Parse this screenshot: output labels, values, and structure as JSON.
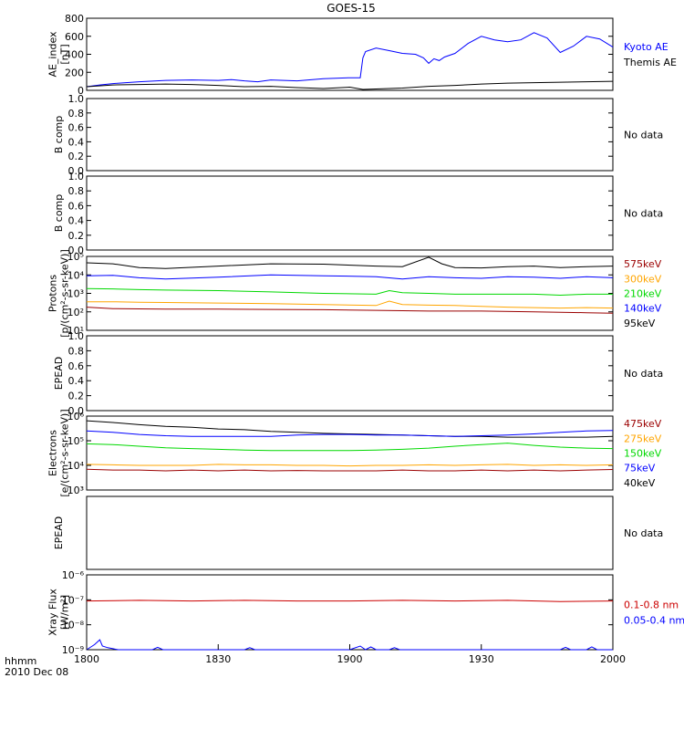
{
  "title": "GOES-15",
  "x_axis": {
    "ticks": [
      "1800",
      "1830",
      "1900",
      "1930",
      "2000"
    ],
    "label_line1": "hhmm",
    "label_line2": "2010 Dec 08"
  },
  "colors": {
    "black": "#000000",
    "blue": "#0000ff",
    "green": "#00d800",
    "orange": "#ffa500",
    "red": "#cc0000",
    "darkred": "#9b0000"
  },
  "chart_data": [
    {
      "type": "line",
      "ylabel": [
        "AE_index",
        "[nT]"
      ],
      "yscale": "linear",
      "ylim": [
        0,
        800
      ],
      "yticks": [
        "0",
        "200",
        "400",
        "600",
        "800"
      ],
      "legend": [
        {
          "text": "Kyoto AE",
          "color": "blue"
        },
        {
          "text": "Themis AE",
          "color": "black"
        }
      ],
      "series": [
        {
          "name": "Kyoto AE",
          "color": "blue",
          "x": [
            0,
            5,
            10,
            20,
            30,
            40,
            50,
            55,
            60,
            65,
            70,
            75,
            80,
            90,
            100,
            104,
            105,
            106,
            110,
            115,
            120,
            125,
            128,
            130,
            132,
            134,
            136,
            140,
            145,
            150,
            155,
            160,
            165,
            170,
            175,
            180,
            185,
            190,
            195,
            200
          ],
          "y": [
            40,
            60,
            75,
            95,
            110,
            115,
            110,
            120,
            105,
            95,
            115,
            110,
            105,
            130,
            140,
            140,
            360,
            430,
            470,
            440,
            410,
            400,
            360,
            300,
            350,
            330,
            370,
            410,
            520,
            600,
            560,
            540,
            560,
            640,
            580,
            420,
            490,
            600,
            570,
            480
          ]
        },
        {
          "name": "Themis AE",
          "color": "black",
          "x": [
            0,
            10,
            20,
            30,
            40,
            50,
            60,
            70,
            80,
            90,
            100,
            105,
            110,
            120,
            130,
            140,
            150,
            160,
            170,
            180,
            190,
            200
          ],
          "y": [
            40,
            60,
            65,
            70,
            65,
            55,
            40,
            45,
            30,
            20,
            35,
            10,
            15,
            25,
            45,
            55,
            70,
            80,
            85,
            90,
            95,
            100
          ]
        }
      ]
    },
    {
      "type": "line",
      "ylabel": [
        "B comp"
      ],
      "yscale": "linear",
      "ylim": [
        0,
        1
      ],
      "yticks": [
        "0.0",
        "0.2",
        "0.4",
        "0.6",
        "0.8",
        "1.0"
      ],
      "legend": [
        {
          "text": "No data",
          "color": "black"
        }
      ],
      "series": []
    },
    {
      "type": "line",
      "ylabel": [
        "B comp"
      ],
      "yscale": "linear",
      "ylim": [
        0,
        1
      ],
      "yticks": [
        "0.0",
        "0.2",
        "0.4",
        "0.6",
        "0.8",
        "1.0"
      ],
      "legend": [
        {
          "text": "No data",
          "color": "black"
        }
      ],
      "series": []
    },
    {
      "type": "line",
      "ylabel": [
        "Protons",
        "[p/(cm²-s-sr-keV)]"
      ],
      "yscale": "log",
      "ylim": [
        10,
        100000
      ],
      "yticks": [
        "10¹",
        "10²",
        "10³",
        "10⁴",
        "10⁵"
      ],
      "legend": [
        {
          "text": "575keV",
          "color": "darkred"
        },
        {
          "text": "300keV",
          "color": "orange"
        },
        {
          "text": "210keV",
          "color": "green"
        },
        {
          "text": "140keV",
          "color": "blue"
        },
        {
          "text": "95keV",
          "color": "black"
        }
      ],
      "series": [
        {
          "name": "95keV",
          "color": "black",
          "x": [
            0,
            10,
            20,
            30,
            50,
            70,
            90,
            110,
            120,
            130,
            135,
            140,
            150,
            160,
            170,
            180,
            190,
            200
          ],
          "y": [
            45000,
            40000,
            25000,
            22000,
            30000,
            40000,
            38000,
            30000,
            28000,
            90000,
            40000,
            25000,
            24000,
            28000,
            30000,
            25000,
            28000,
            30000
          ]
        },
        {
          "name": "140keV",
          "color": "blue",
          "x": [
            0,
            10,
            20,
            30,
            50,
            70,
            90,
            110,
            120,
            130,
            140,
            150,
            160,
            170,
            180,
            190,
            200
          ],
          "y": [
            9000,
            9500,
            7000,
            6000,
            7500,
            10000,
            9000,
            8000,
            6000,
            8000,
            7000,
            6500,
            8000,
            7500,
            6500,
            8000,
            7000
          ]
        },
        {
          "name": "210keV",
          "color": "green",
          "x": [
            0,
            10,
            20,
            30,
            50,
            70,
            90,
            110,
            115,
            120,
            130,
            140,
            150,
            160,
            170,
            180,
            190,
            200
          ],
          "y": [
            1800,
            1750,
            1600,
            1500,
            1400,
            1200,
            1000,
            900,
            1400,
            1100,
            1000,
            900,
            900,
            900,
            900,
            800,
            900,
            900
          ]
        },
        {
          "name": "300keV",
          "color": "orange",
          "x": [
            0,
            10,
            20,
            30,
            50,
            70,
            90,
            110,
            115,
            120,
            130,
            140,
            150,
            160,
            170,
            180,
            190,
            200
          ],
          "y": [
            350,
            350,
            330,
            320,
            300,
            280,
            250,
            220,
            380,
            250,
            230,
            220,
            200,
            180,
            170,
            160,
            170,
            160
          ]
        },
        {
          "name": "575keV",
          "color": "darkred",
          "x": [
            0,
            10,
            20,
            30,
            50,
            70,
            90,
            110,
            130,
            150,
            170,
            180,
            190,
            200
          ],
          "y": [
            180,
            150,
            145,
            140,
            140,
            135,
            130,
            120,
            110,
            110,
            100,
            95,
            90,
            85
          ]
        }
      ]
    },
    {
      "type": "line",
      "ylabel": [
        "EPEAD"
      ],
      "yscale": "linear",
      "ylim": [
        0,
        1
      ],
      "yticks": [
        "0.0",
        "0.2",
        "0.4",
        "0.6",
        "0.8",
        "1.0"
      ],
      "legend": [
        {
          "text": "No data",
          "color": "black"
        }
      ],
      "series": []
    },
    {
      "type": "line",
      "ylabel": [
        "Electrons",
        "[e/(cm²-s-sr-keV)]"
      ],
      "yscale": "log",
      "ylim": [
        1000,
        1000000
      ],
      "yticks": [
        "10³",
        "10⁴",
        "10⁵",
        "10⁶"
      ],
      "legend": [
        {
          "text": "475keV",
          "color": "darkred"
        },
        {
          "text": "275keV",
          "color": "orange"
        },
        {
          "text": "150keV",
          "color": "green"
        },
        {
          "text": "75keV",
          "color": "blue"
        },
        {
          "text": "40keV",
          "color": "black"
        }
      ],
      "series": [
        {
          "name": "40keV",
          "color": "black",
          "x": [
            0,
            10,
            20,
            30,
            40,
            50,
            60,
            70,
            80,
            90,
            100,
            110,
            120,
            130,
            140,
            150,
            160,
            170,
            180,
            190,
            200
          ],
          "y": [
            650000,
            550000,
            450000,
            380000,
            350000,
            300000,
            280000,
            240000,
            220000,
            200000,
            190000,
            180000,
            170000,
            160000,
            150000,
            150000,
            140000,
            140000,
            140000,
            140000,
            150000
          ]
        },
        {
          "name": "75keV",
          "color": "blue",
          "x": [
            0,
            10,
            20,
            30,
            40,
            50,
            60,
            70,
            80,
            90,
            100,
            110,
            120,
            130,
            140,
            150,
            160,
            170,
            180,
            190,
            200
          ],
          "y": [
            250000,
            220000,
            180000,
            160000,
            150000,
            150000,
            150000,
            150000,
            170000,
            180000,
            180000,
            170000,
            170000,
            160000,
            150000,
            160000,
            170000,
            190000,
            220000,
            250000,
            260000
          ]
        },
        {
          "name": "150keV",
          "color": "green",
          "x": [
            0,
            10,
            20,
            30,
            40,
            50,
            60,
            70,
            80,
            90,
            100,
            110,
            120,
            130,
            140,
            150,
            160,
            170,
            180,
            190,
            200
          ],
          "y": [
            75000,
            70000,
            60000,
            52000,
            48000,
            45000,
            42000,
            40000,
            40000,
            40000,
            40000,
            42000,
            45000,
            50000,
            60000,
            70000,
            80000,
            65000,
            55000,
            50000,
            48000
          ]
        },
        {
          "name": "275keV",
          "color": "orange",
          "x": [
            0,
            10,
            20,
            30,
            40,
            50,
            60,
            70,
            80,
            90,
            100,
            110,
            120,
            130,
            140,
            150,
            160,
            170,
            180,
            190,
            200
          ],
          "y": [
            11000,
            10500,
            10000,
            10000,
            10000,
            11000,
            10500,
            10500,
            10000,
            10000,
            9500,
            10000,
            10000,
            10500,
            10000,
            10500,
            11000,
            10000,
            10500,
            10000,
            10500
          ]
        },
        {
          "name": "475keV",
          "color": "darkred",
          "x": [
            0,
            10,
            20,
            30,
            40,
            50,
            60,
            70,
            80,
            90,
            100,
            110,
            120,
            130,
            140,
            150,
            160,
            170,
            180,
            190,
            200
          ],
          "y": [
            7000,
            6500,
            6500,
            6000,
            6500,
            6000,
            6500,
            6000,
            6200,
            6000,
            6000,
            6000,
            6500,
            6000,
            6000,
            6500,
            6000,
            6500,
            6000,
            6500,
            6800
          ]
        }
      ]
    },
    {
      "type": "line",
      "ylabel": [
        "EPEAD"
      ],
      "yscale": "linear",
      "ylim": [
        0,
        1
      ],
      "yticks": [],
      "legend": [
        {
          "text": "No data",
          "color": "black"
        }
      ],
      "series": []
    },
    {
      "type": "line",
      "ylabel": [
        "Xray Flux",
        "[W/m²]"
      ],
      "yscale": "log",
      "ylim": [
        1e-09,
        1e-06
      ],
      "yticks": [
        "10⁻⁹",
        "10⁻⁸",
        "10⁻⁷",
        "10⁻⁶"
      ],
      "legend": [
        {
          "text": "0.1-0.8 nm",
          "color": "red"
        },
        {
          "text": "0.05-0.4 nm",
          "color": "blue"
        }
      ],
      "series": [
        {
          "name": "0.1-0.8 nm",
          "color": "red",
          "x": [
            0,
            20,
            40,
            60,
            80,
            100,
            120,
            140,
            160,
            180,
            200
          ],
          "y": [
            9e-08,
            9.5e-08,
            9e-08,
            9.5e-08,
            9e-08,
            9e-08,
            9.5e-08,
            9e-08,
            9.5e-08,
            8.5e-08,
            9e-08
          ]
        },
        {
          "name": "0.05-0.4 nm",
          "color": "blue",
          "x": [
            0,
            3,
            5,
            6,
            8,
            10,
            12,
            25,
            27,
            29,
            60,
            62,
            64,
            100,
            104,
            106,
            108,
            110,
            115,
            117,
            119,
            180,
            182,
            184,
            190,
            192,
            194,
            200
          ],
          "y": [
            1e-09,
            1.6e-09,
            2.5e-09,
            1.4e-09,
            1.2e-09,
            1.1e-09,
            1e-09,
            1e-09,
            1.25e-09,
            1e-09,
            1e-09,
            1.2e-09,
            1e-09,
            1e-09,
            1.4e-09,
            1e-09,
            1.3e-09,
            1e-09,
            1e-09,
            1.2e-09,
            1e-09,
            1e-09,
            1.25e-09,
            1e-09,
            1e-09,
            1.3e-09,
            1e-09,
            1e-09
          ]
        }
      ]
    }
  ]
}
